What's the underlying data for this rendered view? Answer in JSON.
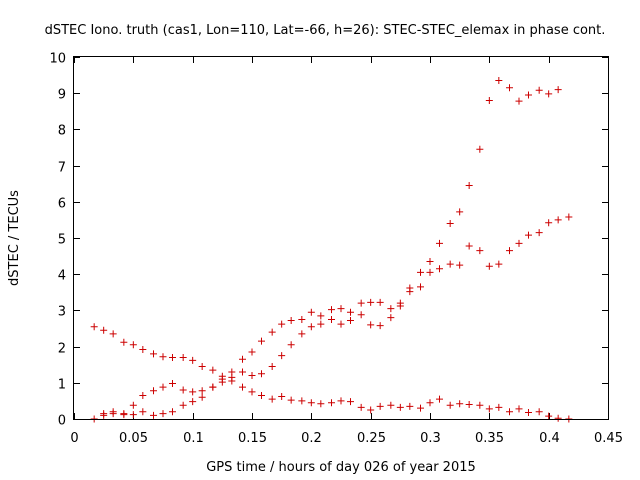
{
  "chart_data": {
    "type": "scatter",
    "title": "dSTEC Iono. truth (cas1, Lon=110, Lat=-66, h=26): STEC-STEC_elemax in phase cont.",
    "xlabel": "GPS time / hours of day 026 of year 2015",
    "ylabel": "dSTEC  / TECUs",
    "xlim": [
      0,
      0.45
    ],
    "ylim": [
      0,
      10
    ],
    "x_ticks": [
      "0",
      "0.05",
      "0.1",
      "0.15",
      "0.2",
      "0.25",
      "0.3",
      "0.35",
      "0.4",
      "0.45"
    ],
    "y_ticks": [
      "0",
      "1",
      "2",
      "3",
      "4",
      "5",
      "6",
      "7",
      "8",
      "9",
      "10"
    ],
    "x_tick_values": [
      0,
      0.05,
      0.1,
      0.15,
      0.2,
      0.25,
      0.3,
      0.35,
      0.4,
      0.45
    ],
    "y_tick_values": [
      0,
      1,
      2,
      3,
      4,
      5,
      6,
      7,
      8,
      9,
      10
    ],
    "grid": false,
    "marker": "plus",
    "marker_color": "#cc0000",
    "series": [
      {
        "points": [
          [
            0.017,
            2.55
          ],
          [
            0.025,
            2.45
          ],
          [
            0.033,
            2.35
          ],
          [
            0.042,
            2.12
          ],
          [
            0.05,
            2.05
          ],
          [
            0.058,
            1.92
          ],
          [
            0.067,
            1.8
          ],
          [
            0.075,
            1.72
          ],
          [
            0.083,
            1.7
          ],
          [
            0.092,
            1.7
          ],
          [
            0.1,
            1.62
          ],
          [
            0.108,
            1.45
          ],
          [
            0.117,
            1.35
          ],
          [
            0.125,
            1.18
          ],
          [
            0.133,
            1.15
          ],
          [
            0.142,
            1.65
          ],
          [
            0.15,
            1.85
          ],
          [
            0.158,
            2.15
          ],
          [
            0.167,
            2.4
          ],
          [
            0.175,
            2.62
          ],
          [
            0.183,
            2.72
          ],
          [
            0.192,
            2.75
          ],
          [
            0.2,
            2.95
          ],
          [
            0.208,
            2.85
          ],
          [
            0.217,
            3.02
          ],
          [
            0.225,
            3.05
          ],
          [
            0.233,
            2.95
          ],
          [
            0.242,
            3.2
          ],
          [
            0.25,
            3.22
          ],
          [
            0.258,
            3.22
          ],
          [
            0.267,
            3.05
          ],
          [
            0.275,
            3.2
          ],
          [
            0.283,
            3.62
          ],
          [
            0.292,
            4.05
          ],
          [
            0.3,
            4.35
          ],
          [
            0.308,
            4.85
          ],
          [
            0.317,
            5.4
          ],
          [
            0.325,
            5.72
          ],
          [
            0.333,
            6.45
          ],
          [
            0.342,
            7.45
          ],
          [
            0.35,
            8.8
          ],
          [
            0.358,
            9.35
          ],
          [
            0.367,
            9.15
          ],
          [
            0.375,
            8.78
          ],
          [
            0.383,
            8.95
          ],
          [
            0.392,
            9.08
          ],
          [
            0.4,
            8.98
          ],
          [
            0.408,
            9.1
          ]
        ]
      },
      {
        "points": [
          [
            0.017,
            0.0
          ],
          [
            0.025,
            0.15
          ],
          [
            0.033,
            0.2
          ],
          [
            0.042,
            0.15
          ],
          [
            0.05,
            0.38
          ],
          [
            0.058,
            0.65
          ],
          [
            0.067,
            0.78
          ],
          [
            0.075,
            0.88
          ],
          [
            0.083,
            0.98
          ],
          [
            0.092,
            0.8
          ],
          [
            0.1,
            0.75
          ],
          [
            0.108,
            0.78
          ],
          [
            0.117,
            0.88
          ],
          [
            0.125,
            1.1
          ],
          [
            0.133,
            1.3
          ],
          [
            0.142,
            1.3
          ],
          [
            0.15,
            1.2
          ],
          [
            0.158,
            1.25
          ],
          [
            0.167,
            1.45
          ],
          [
            0.175,
            1.75
          ],
          [
            0.183,
            2.05
          ],
          [
            0.192,
            2.35
          ],
          [
            0.2,
            2.55
          ],
          [
            0.208,
            2.62
          ],
          [
            0.217,
            2.75
          ],
          [
            0.225,
            2.62
          ],
          [
            0.233,
            2.72
          ],
          [
            0.242,
            2.88
          ],
          [
            0.25,
            2.6
          ],
          [
            0.258,
            2.58
          ],
          [
            0.267,
            2.8
          ],
          [
            0.275,
            3.12
          ],
          [
            0.283,
            3.52
          ],
          [
            0.292,
            3.65
          ],
          [
            0.3,
            4.05
          ],
          [
            0.308,
            4.15
          ],
          [
            0.317,
            4.28
          ],
          [
            0.325,
            4.25
          ],
          [
            0.333,
            4.78
          ],
          [
            0.342,
            4.65
          ],
          [
            0.35,
            4.22
          ],
          [
            0.358,
            4.28
          ],
          [
            0.367,
            4.65
          ],
          [
            0.375,
            4.85
          ],
          [
            0.383,
            5.08
          ],
          [
            0.392,
            5.15
          ],
          [
            0.4,
            5.42
          ],
          [
            0.408,
            5.5
          ],
          [
            0.417,
            5.58
          ]
        ]
      },
      {
        "points": [
          [
            0.025,
            0.1
          ],
          [
            0.033,
            0.15
          ],
          [
            0.042,
            0.12
          ],
          [
            0.05,
            0.12
          ],
          [
            0.058,
            0.2
          ],
          [
            0.067,
            0.1
          ],
          [
            0.075,
            0.15
          ],
          [
            0.083,
            0.2
          ],
          [
            0.092,
            0.38
          ],
          [
            0.1,
            0.48
          ],
          [
            0.108,
            0.6
          ],
          [
            0.117,
            0.88
          ],
          [
            0.125,
            1.02
          ],
          [
            0.133,
            1.05
          ],
          [
            0.142,
            0.88
          ],
          [
            0.15,
            0.75
          ],
          [
            0.158,
            0.65
          ],
          [
            0.167,
            0.55
          ],
          [
            0.175,
            0.62
          ],
          [
            0.183,
            0.52
          ],
          [
            0.192,
            0.5
          ],
          [
            0.2,
            0.45
          ],
          [
            0.208,
            0.42
          ],
          [
            0.217,
            0.45
          ],
          [
            0.225,
            0.5
          ],
          [
            0.233,
            0.48
          ],
          [
            0.242,
            0.32
          ],
          [
            0.25,
            0.25
          ],
          [
            0.258,
            0.35
          ],
          [
            0.267,
            0.38
          ],
          [
            0.275,
            0.32
          ],
          [
            0.283,
            0.35
          ],
          [
            0.292,
            0.3
          ],
          [
            0.3,
            0.45
          ],
          [
            0.308,
            0.55
          ],
          [
            0.317,
            0.38
          ],
          [
            0.325,
            0.42
          ],
          [
            0.333,
            0.4
          ],
          [
            0.342,
            0.38
          ],
          [
            0.35,
            0.28
          ],
          [
            0.358,
            0.32
          ],
          [
            0.367,
            0.2
          ],
          [
            0.375,
            0.28
          ],
          [
            0.383,
            0.18
          ],
          [
            0.392,
            0.2
          ],
          [
            0.4,
            0.08
          ],
          [
            0.408,
            0.02
          ],
          [
            0.417,
            0.0
          ]
        ]
      }
    ]
  }
}
